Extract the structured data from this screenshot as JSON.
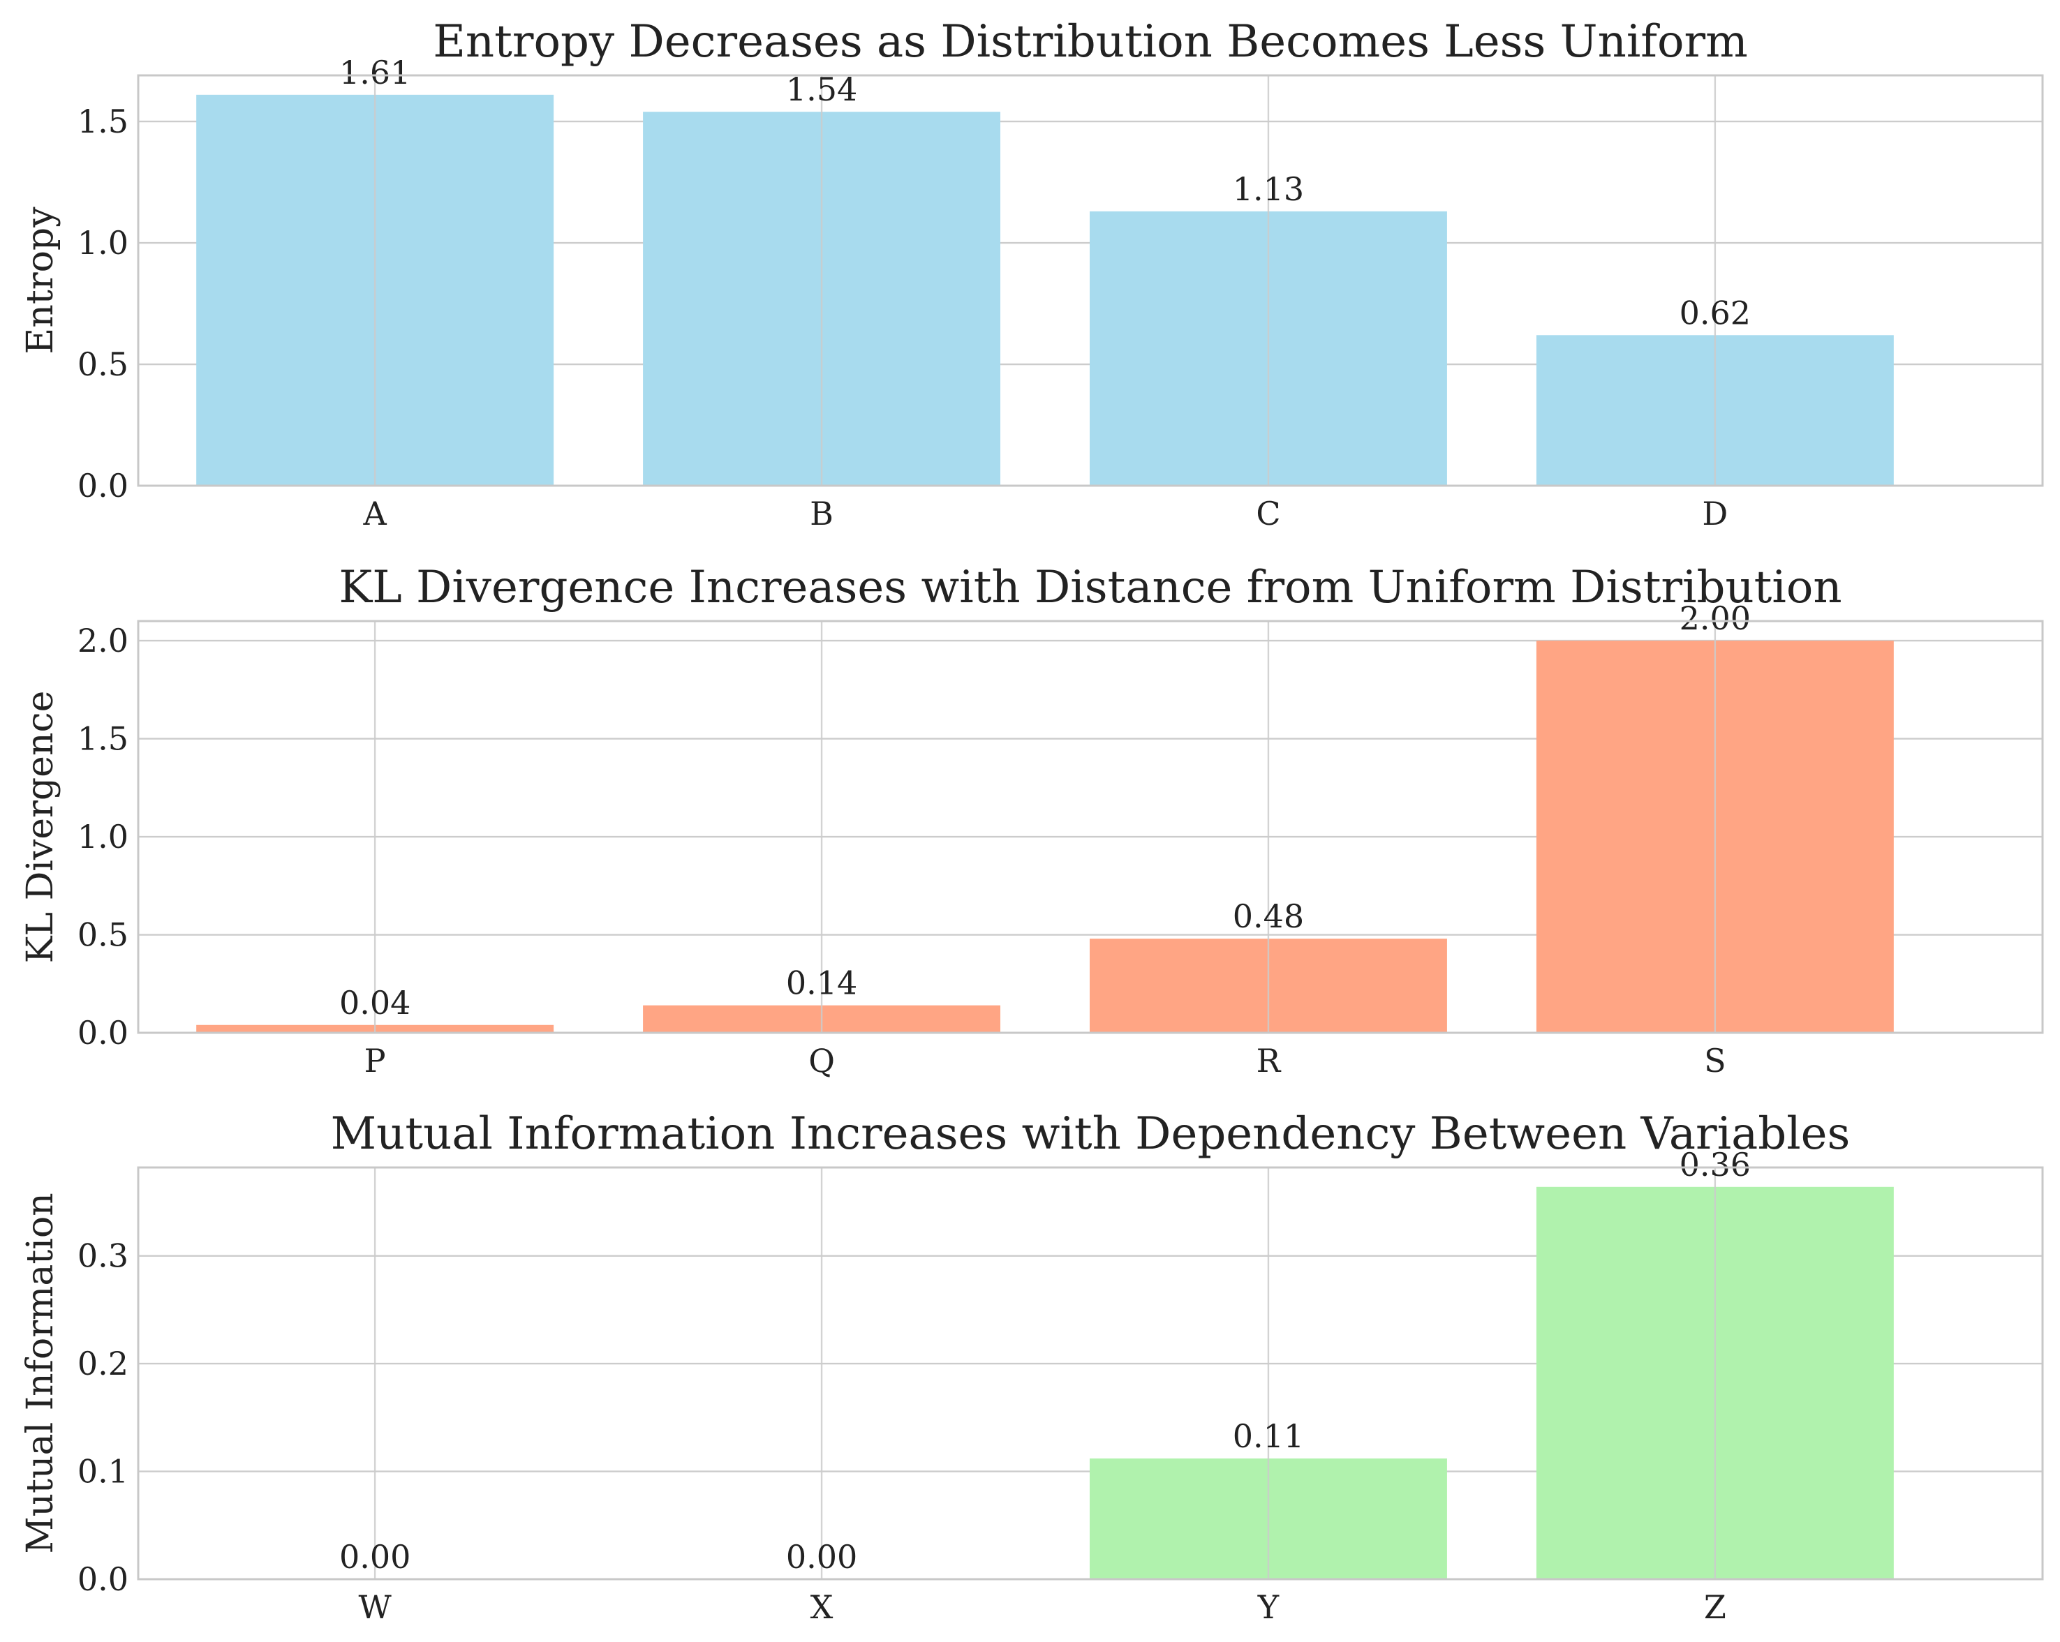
{
  "colors": {
    "entropy": "#a8dbee",
    "kl": "#ffa584",
    "mi": "#b0f2ad"
  },
  "chart_data": [
    {
      "type": "bar",
      "title": "Entropy Decreases as Distribution Becomes Less Uniform",
      "xlabel": "",
      "ylabel": "Entropy",
      "categories": [
        "A",
        "B",
        "C",
        "D"
      ],
      "values": [
        1.61,
        1.54,
        1.13,
        0.62
      ],
      "value_labels": [
        "1.61",
        "1.54",
        "1.13",
        "0.62"
      ],
      "ylim": [
        0,
        1.69
      ],
      "yticks": [
        0.0,
        0.5,
        1.0,
        1.5
      ],
      "ytick_labels": [
        "0.0",
        "0.5",
        "1.0",
        "1.5"
      ],
      "color": "#a8dbee",
      "grid": true
    },
    {
      "type": "bar",
      "title": "KL Divergence Increases with Distance from Uniform Distribution",
      "xlabel": "",
      "ylabel": "KL Divergence",
      "categories": [
        "P",
        "Q",
        "R",
        "S"
      ],
      "values": [
        0.04,
        0.14,
        0.48,
        2.0
      ],
      "value_labels": [
        "0.04",
        "0.14",
        "0.48",
        "2.00"
      ],
      "ylim": [
        0,
        2.1
      ],
      "yticks": [
        0.0,
        0.5,
        1.0,
        1.5,
        2.0
      ],
      "ytick_labels": [
        "0.0",
        "0.5",
        "1.0",
        "1.5",
        "2.0"
      ],
      "color": "#ffa584",
      "grid": true
    },
    {
      "type": "bar",
      "title": "Mutual Information Increases with Dependency Between Variables",
      "xlabel": "",
      "ylabel": "Mutual Information",
      "categories": [
        "W",
        "X",
        "Y",
        "Z"
      ],
      "values": [
        0.0,
        0.0,
        0.112,
        0.364
      ],
      "value_labels": [
        "0.00",
        "0.00",
        "0.11",
        "0.36"
      ],
      "ylim": [
        0,
        0.382
      ],
      "yticks": [
        0.0,
        0.1,
        0.2,
        0.3
      ],
      "ytick_labels": [
        "0.0",
        "0.1",
        "0.2",
        "0.3"
      ],
      "color": "#b0f2ad",
      "grid": true
    }
  ]
}
